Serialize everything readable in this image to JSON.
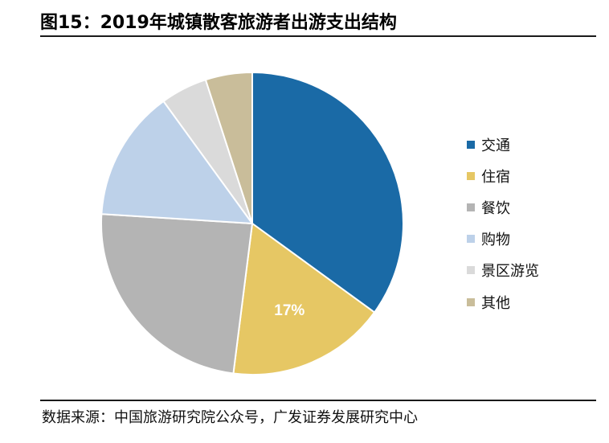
{
  "title": "图15：2019年城镇散客旅游者出游支出结构",
  "source": "数据来源：中国旅游研究院公众号，广发证券发展研究中心",
  "chart_data": {
    "type": "pie",
    "title": "图15：2019年城镇散客旅游者出游支出结构",
    "legend_position": "right",
    "slices": [
      {
        "label": "交通",
        "value": 35,
        "color": "#1A6AA6",
        "data_label": ""
      },
      {
        "label": "住宿",
        "value": 17,
        "color": "#E6C764",
        "data_label": "17%"
      },
      {
        "label": "餐饮",
        "value": 24,
        "color": "#B4B4B4",
        "data_label": ""
      },
      {
        "label": "购物",
        "value": 14,
        "color": "#BDD1E9",
        "data_label": ""
      },
      {
        "label": "景区游览",
        "value": 5,
        "color": "#DADADA",
        "data_label": ""
      },
      {
        "label": "其他",
        "value": 5,
        "color": "#C9BD9A",
        "data_label": ""
      }
    ]
  }
}
